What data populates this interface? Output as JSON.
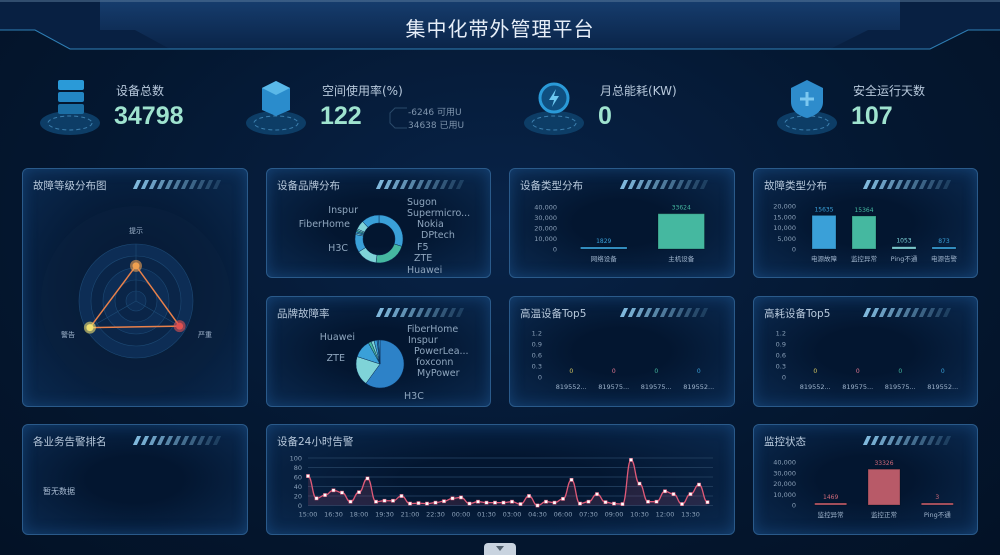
{
  "header": {
    "title": "集中化带外管理平台"
  },
  "kpis": [
    {
      "label": "设备总数",
      "value": "34798",
      "icon": "server-icon"
    },
    {
      "label": "空间使用率(%)",
      "value": "122",
      "icon": "cube-icon",
      "sub": [
        {
          "text": "-6246 可用U"
        },
        {
          "text": "34638 已用U"
        }
      ]
    },
    {
      "label": "月总能耗(KW)",
      "value": "0",
      "icon": "power-icon"
    },
    {
      "label": "安全运行天数",
      "value": "107",
      "icon": "shield-icon"
    }
  ],
  "panels": {
    "fault_level": "故障等级分布图",
    "brand_dist": "设备品牌分布",
    "type_dist": "设备类型分布",
    "fault_type": "故障类型分布",
    "brand_fault": "品牌故障率",
    "high_temp": "高温设备Top5",
    "high_power": "高耗设备Top5",
    "biz_alarm": "各业务告警排名",
    "alarm_24h": "设备24小时告警",
    "monitor": "监控状态"
  },
  "biz_alarm": {
    "empty_text": "暂无数据"
  },
  "colors": {
    "accent": "#3aa0d8",
    "teal": "#45b8a0",
    "line": "#e05a78"
  },
  "chart_data": [
    {
      "id": "fault_level",
      "type": "radar",
      "indicators": [
        "提示",
        "警告",
        "严重"
      ],
      "values": [
        37,
        56,
        53
      ],
      "max": 60
    },
    {
      "id": "brand_dist",
      "type": "pie",
      "donut": true,
      "labels": [
        "Huawei",
        "H3C",
        "FiberHome",
        "Inspur",
        "Sugon",
        "Supermicro...",
        "Nokia",
        "DPtech",
        "F5",
        "ZTE"
      ],
      "values": [
        30,
        22,
        14,
        12,
        1,
        1,
        1,
        1,
        6,
        12
      ]
    },
    {
      "id": "type_dist",
      "type": "bar",
      "categories": [
        "网络设备",
        "主机设备"
      ],
      "values": [
        1829,
        33624
      ],
      "ylim": [
        0,
        40000
      ],
      "ticks": [
        "0",
        "10,000",
        "20,000",
        "30,000",
        "40,000"
      ],
      "colors": [
        "#3aa0d8",
        "#45b8a0"
      ]
    },
    {
      "id": "fault_type",
      "type": "bar",
      "categories": [
        "电源故障",
        "监控异常",
        "Ping不通",
        "电源告警"
      ],
      "values": [
        15635,
        15364,
        1053,
        873
      ],
      "ylim": [
        0,
        20000
      ],
      "ticks": [
        "0",
        "5,000",
        "10,000",
        "15,000",
        "20,000"
      ],
      "colors": [
        "#3aa0d8",
        "#45b8a0",
        "#7fd3d8",
        "#3aa0d8"
      ]
    },
    {
      "id": "brand_fault",
      "type": "pie",
      "labels": [
        "H3C",
        "ZTE",
        "Huawei",
        "FiberHome",
        "Inspur",
        "PowerLea...",
        "foxconn",
        "MyPower"
      ],
      "values": [
        60,
        20,
        12,
        2,
        2,
        2,
        1,
        1
      ]
    },
    {
      "id": "high_temp",
      "type": "bar",
      "categories": [
        "819552...",
        "819575...",
        "819575...",
        "819552..."
      ],
      "values": [
        0,
        0,
        0,
        0
      ],
      "ylim": [
        0,
        1.2
      ],
      "ticks": [
        "0",
        "0.3",
        "0.6",
        "0.9",
        "1.2"
      ],
      "colors": [
        "#d8c860",
        "#e07890",
        "#45b8a0",
        "#3aa0d8"
      ]
    },
    {
      "id": "high_power",
      "type": "bar",
      "categories": [
        "819552...",
        "819575...",
        "819575...",
        "819552..."
      ],
      "values": [
        0,
        0,
        0,
        0
      ],
      "ylim": [
        0,
        1.2
      ],
      "ticks": [
        "0",
        "0.3",
        "0.6",
        "0.9",
        "1.2"
      ],
      "colors": [
        "#d8c860",
        "#e07890",
        "#45b8a0",
        "#3aa0d8"
      ]
    },
    {
      "id": "alarm_24h",
      "type": "line",
      "x_ticks": [
        "15:00",
        "16:30",
        "18:00",
        "19:30",
        "21:00",
        "22:30",
        "00:00",
        "01:30",
        "03:00",
        "04:30",
        "06:00",
        "07:30",
        "09:00",
        "10:30",
        "12:00",
        "13:30"
      ],
      "ylim": [
        0,
        100
      ],
      "ticks": [
        "0",
        "20",
        "40",
        "60",
        "80",
        "100"
      ],
      "values": [
        62,
        15,
        22,
        32,
        27,
        8,
        28,
        57,
        8,
        10,
        10,
        20,
        4,
        5,
        4,
        6,
        9,
        15,
        17,
        4,
        8,
        6,
        6,
        6,
        8,
        3,
        20,
        0,
        8,
        6,
        14,
        54,
        4,
        8,
        24,
        7,
        4,
        3,
        96,
        46,
        8,
        8,
        30,
        24,
        3,
        24,
        44,
        7
      ]
    },
    {
      "id": "monitor",
      "type": "bar",
      "categories": [
        "监控异常",
        "监控正常",
        "Ping不通"
      ],
      "values": [
        1469,
        33326,
        3
      ],
      "ylim": [
        0,
        40000
      ],
      "ticks": [
        "0",
        "10,000",
        "20,000",
        "30,000",
        "40,000"
      ],
      "colors": [
        "#b85a68",
        "#b85a68",
        "#b85a68"
      ],
      "label_color": "#d06a7a"
    }
  ]
}
